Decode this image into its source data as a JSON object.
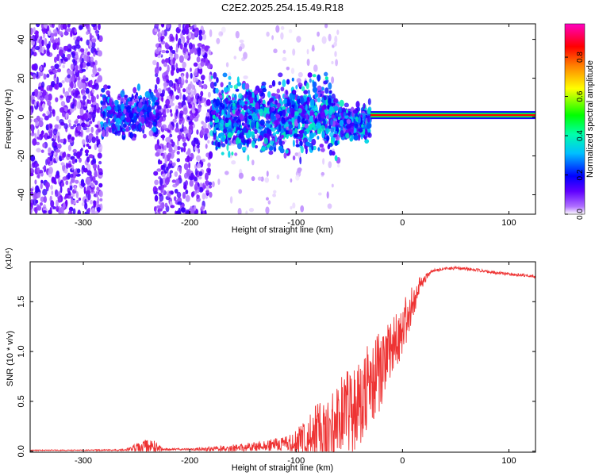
{
  "title": "C2E2.2025.254.15.49.R18",
  "chart_data": [
    {
      "type": "heatmap",
      "title": "C2E2.2025.254.15.49.R18",
      "xlabel": "Height of straight line (km)",
      "ylabel": "Frequency (Hz)",
      "xlim": [
        -350,
        125
      ],
      "ylim": [
        -50,
        48
      ],
      "xticks": [
        -300,
        -200,
        -100,
        0,
        100
      ],
      "xtick_labels": [
        "-300",
        "-200",
        "-100",
        "0",
        "100"
      ],
      "yticks": [
        -40,
        -20,
        0,
        20,
        40
      ],
      "ytick_labels": [
        "-40",
        "-20",
        "0",
        "20",
        "40"
      ],
      "colorbar": {
        "label": "Normalized spectral amplitude",
        "range": [
          0,
          0.97
        ],
        "ticks": [
          0,
          0.2,
          0.4,
          0.6,
          0.8
        ],
        "tick_labels": [
          "0.0",
          "0.2",
          "0.4",
          "0.6",
          "0.8"
        ],
        "colormap": [
          "#ffffff",
          "#8000ff",
          "#0000ff",
          "#00ffff",
          "#00ff00",
          "#ffff00",
          "#ff8000",
          "#ff0000",
          "#ff00ff"
        ]
      },
      "regions": [
        {
          "name": "broadband noise",
          "x_range": [
            -350,
            -283
          ],
          "f_range": [
            -50,
            48
          ],
          "amplitude": 0.1
        },
        {
          "name": "broadband noise",
          "x_range": [
            -233,
            -180
          ],
          "f_range": [
            -50,
            48
          ],
          "amplitude": 0.1
        },
        {
          "name": "sparse noise",
          "x_range": [
            -178,
            -60
          ],
          "f_range": [
            -50,
            48
          ],
          "amplitude": 0.03
        },
        {
          "name": "signal band",
          "x_range": [
            -283,
            -230
          ],
          "f_range": [
            -8,
            12
          ],
          "amplitude": 0.2
        },
        {
          "name": "signal band",
          "x_range": [
            -180,
            -30
          ],
          "f_range": [
            -15,
            15
          ],
          "amplitude": 0.25
        },
        {
          "name": "narrowband carrier",
          "x_range": [
            -30,
            125
          ],
          "f_range": [
            -1,
            3
          ],
          "amplitude": 0.9
        }
      ]
    },
    {
      "type": "line",
      "title": "",
      "xlabel": "Height of straight line (km)",
      "ylabel": "SNR (10 * v/v)",
      "y_multiplier_label": "(x10⁴)",
      "y_multiplier": 10000,
      "xlim": [
        -350,
        125
      ],
      "ylim": [
        -0.01,
        1.9
      ],
      "xticks": [
        -300,
        -200,
        -100,
        0,
        100
      ],
      "xtick_labels": [
        "-300",
        "-200",
        "-100",
        "0",
        "100"
      ],
      "yticks": [
        0,
        0.5,
        1.0,
        1.5
      ],
      "ytick_labels": [
        "0.0",
        "0.5",
        "1.0",
        "1.5"
      ],
      "color": "#ee3333",
      "x": [
        -350,
        -300,
        -260,
        -245,
        -235,
        -225,
        -200,
        -170,
        -150,
        -130,
        -110,
        -100,
        -90,
        -80,
        -70,
        -60,
        -50,
        -40,
        -30,
        -20,
        -15,
        -10,
        -5,
        0,
        5,
        10,
        15,
        20,
        25,
        30,
        40,
        50,
        60,
        70,
        80,
        90,
        100,
        110,
        120,
        125
      ],
      "y": [
        0.01,
        0.01,
        0.015,
        0.04,
        0.05,
        0.02,
        0.02,
        0.03,
        0.04,
        0.06,
        0.08,
        0.1,
        0.15,
        0.22,
        0.28,
        0.35,
        0.45,
        0.55,
        0.7,
        0.85,
        0.95,
        1.05,
        1.15,
        1.25,
        1.4,
        1.55,
        1.65,
        1.72,
        1.78,
        1.82,
        1.83,
        1.84,
        1.83,
        1.82,
        1.8,
        1.79,
        1.78,
        1.77,
        1.76,
        1.75
      ],
      "noise_envelope": [
        0.005,
        0.005,
        0.01,
        0.08,
        0.08,
        0.01,
        0.01,
        0.03,
        0.04,
        0.05,
        0.08,
        0.12,
        0.22,
        0.3,
        0.35,
        0.4,
        0.45,
        0.45,
        0.45,
        0.4,
        0.35,
        0.3,
        0.28,
        0.25,
        0.25,
        0.2,
        0.1,
        0.05,
        0.03,
        0.02,
        0.015,
        0.015,
        0.015,
        0.015,
        0.015,
        0.015,
        0.015,
        0.015,
        0.015,
        0.015
      ]
    }
  ]
}
